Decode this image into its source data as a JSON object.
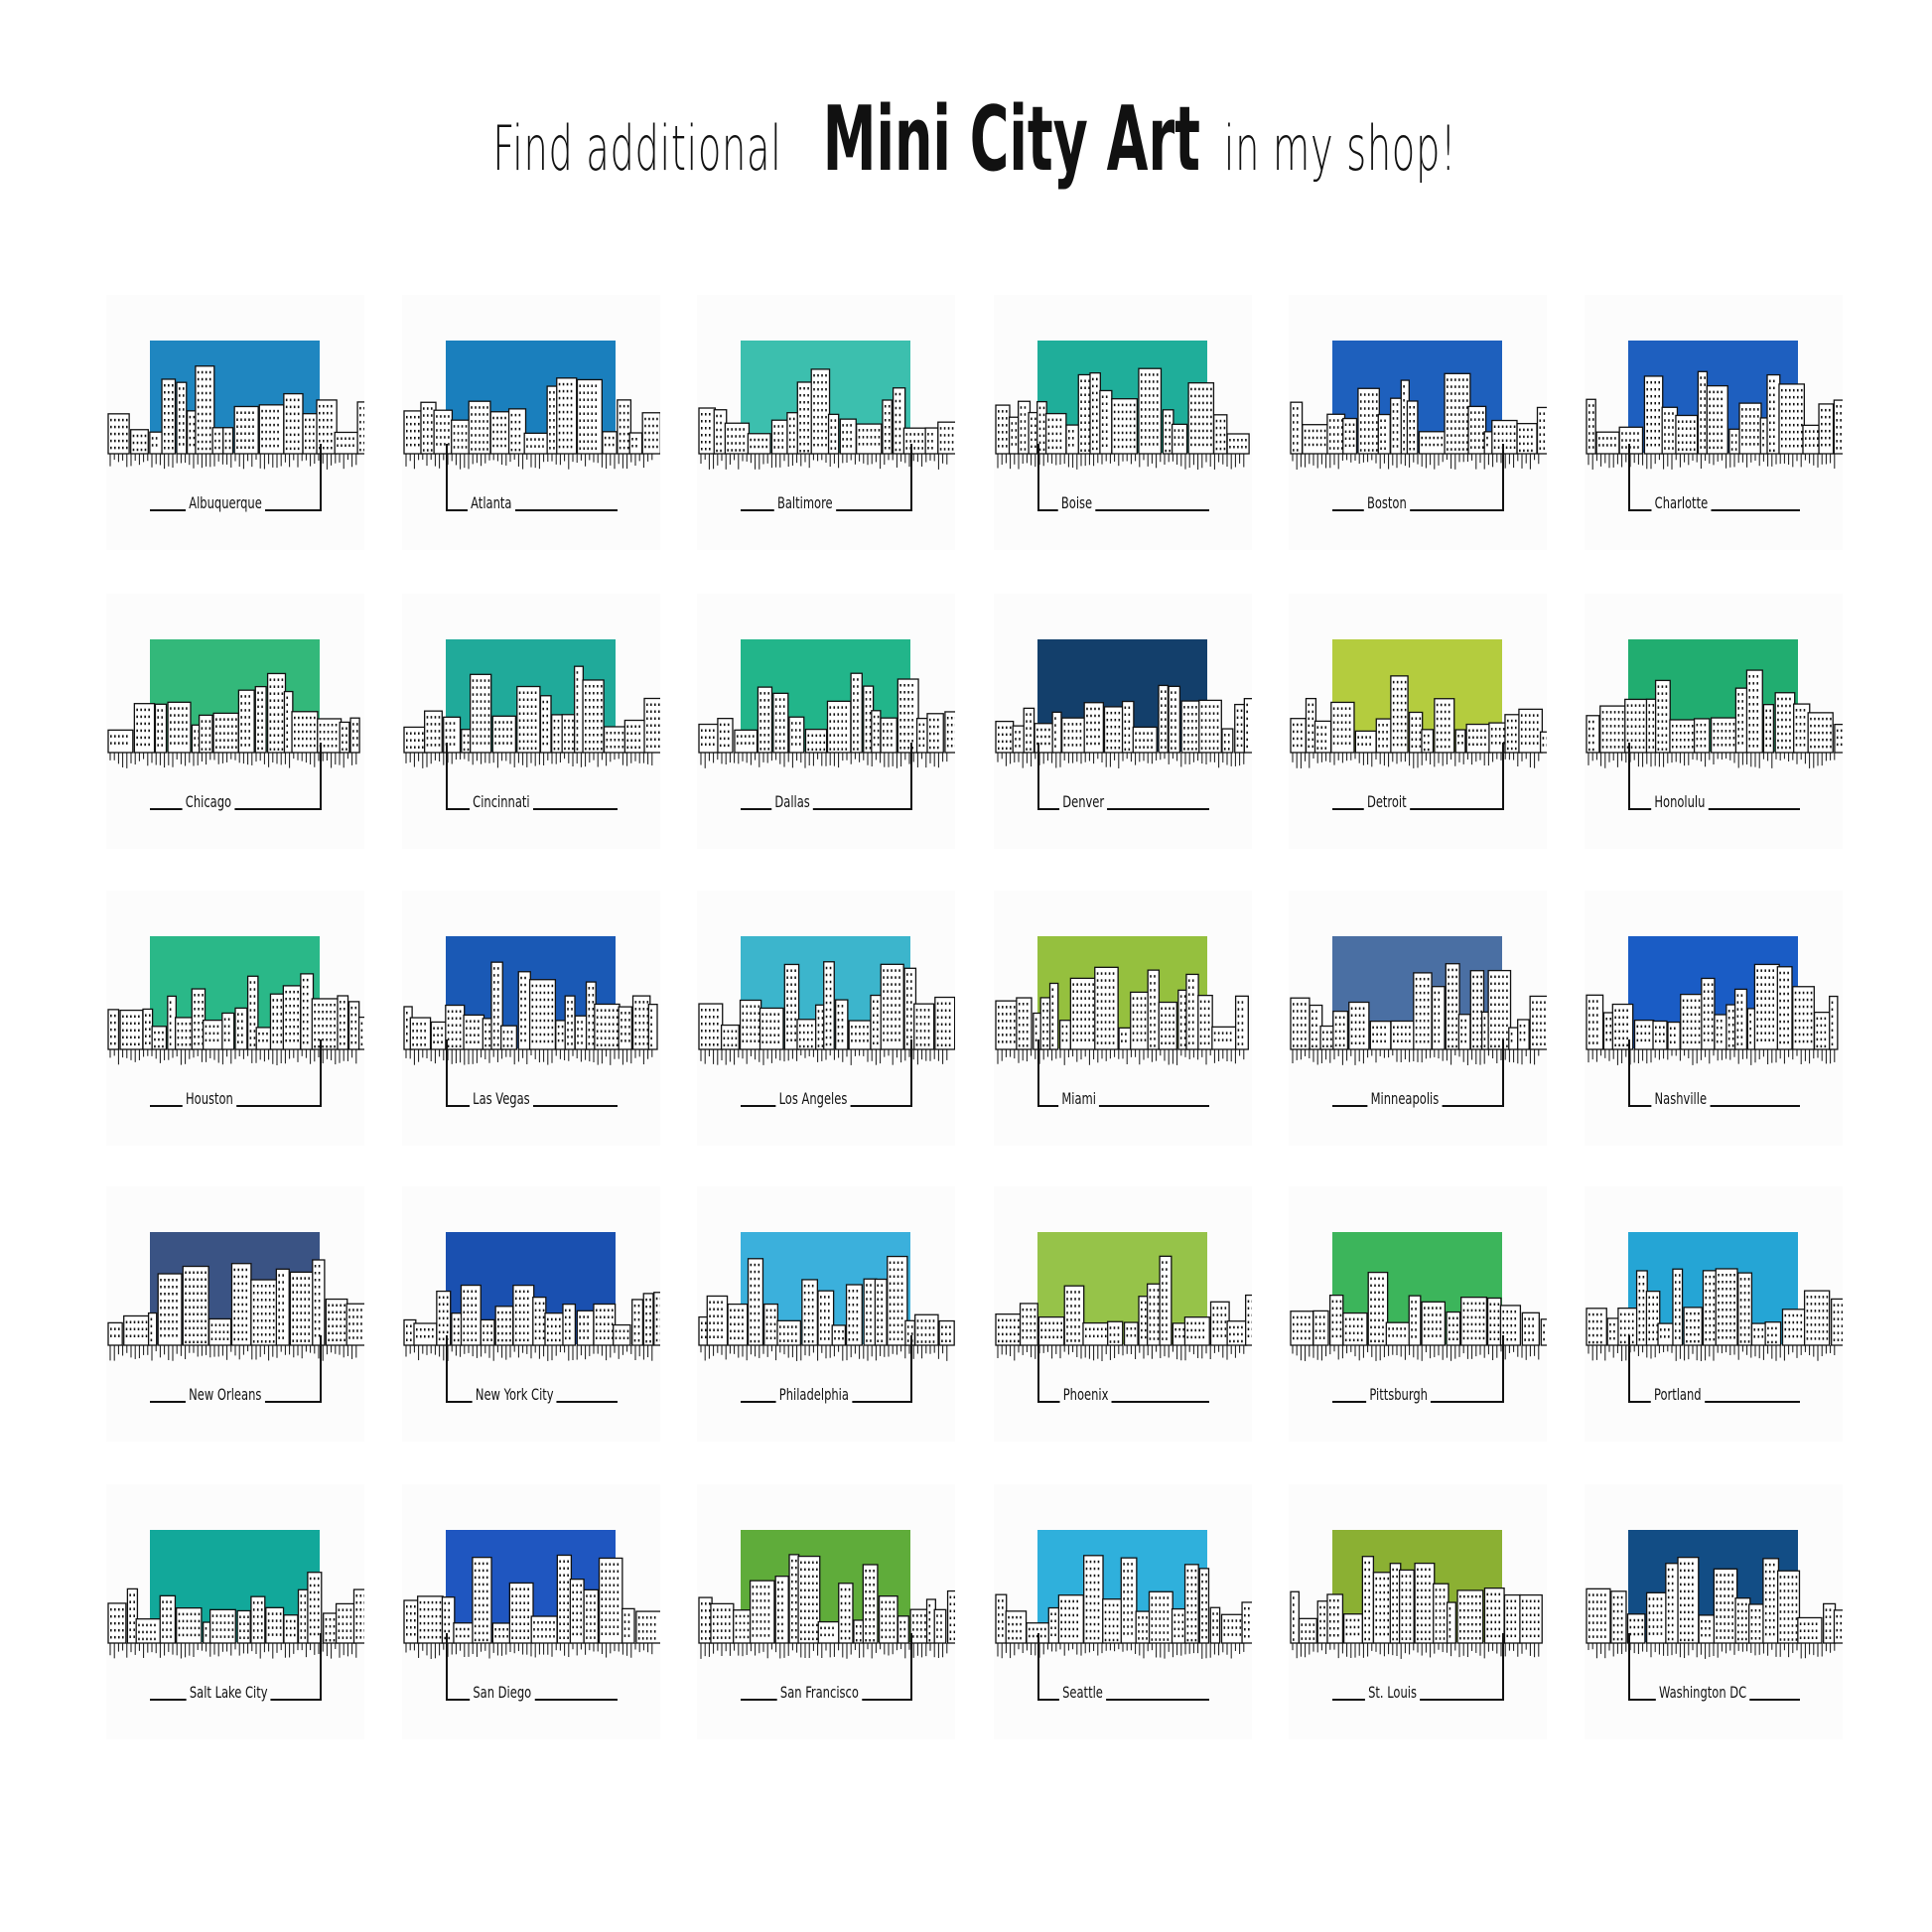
{
  "title": {
    "prefix": "Find additional",
    "highlight": "Mini City Art",
    "suffix": "in my shop!"
  },
  "cities": [
    {
      "name": "Albuquerque",
      "color": "#1f86c0"
    },
    {
      "name": "Atlanta",
      "color": "#1a7fbd"
    },
    {
      "name": "Baltimore",
      "color": "#3cbfae"
    },
    {
      "name": "Boise",
      "color": "#1fae9a"
    },
    {
      "name": "Boston",
      "color": "#1e60bd"
    },
    {
      "name": "Charlotte",
      "color": "#1e5fbf"
    },
    {
      "name": "Chicago",
      "color": "#33b87a"
    },
    {
      "name": "Cincinnati",
      "color": "#20aa9a"
    },
    {
      "name": "Dallas",
      "color": "#22b58a"
    },
    {
      "name": "Denver",
      "color": "#133f6b"
    },
    {
      "name": "Detroit",
      "color": "#b4cc3e"
    },
    {
      "name": "Honolulu",
      "color": "#21ad70"
    },
    {
      "name": "Houston",
      "color": "#2ab888"
    },
    {
      "name": "Las Vegas",
      "color": "#1a59b5"
    },
    {
      "name": "Los Angeles",
      "color": "#3cb5cc"
    },
    {
      "name": "Miami",
      "color": "#95c03e"
    },
    {
      "name": "Minneapolis",
      "color": "#4a6fa3"
    },
    {
      "name": "Nashville",
      "color": "#1a5cc5"
    },
    {
      "name": "New Orleans",
      "color": "#3a5384"
    },
    {
      "name": "New York City",
      "color": "#1a50b0"
    },
    {
      "name": "Philadelphia",
      "color": "#3bb0dc"
    },
    {
      "name": "Phoenix",
      "color": "#96c349"
    },
    {
      "name": "Pittsburgh",
      "color": "#3cb55b"
    },
    {
      "name": "Portland",
      "color": "#25a5d5"
    },
    {
      "name": "Salt Lake City",
      "color": "#12a89a"
    },
    {
      "name": "San Diego",
      "color": "#1f56c0"
    },
    {
      "name": "San Francisco",
      "color": "#5fac3a"
    },
    {
      "name": "Seattle",
      "color": "#2fb0dc"
    },
    {
      "name": "St. Louis",
      "color": "#8bb033"
    },
    {
      "name": "Washington DC",
      "color": "#124d85"
    }
  ]
}
